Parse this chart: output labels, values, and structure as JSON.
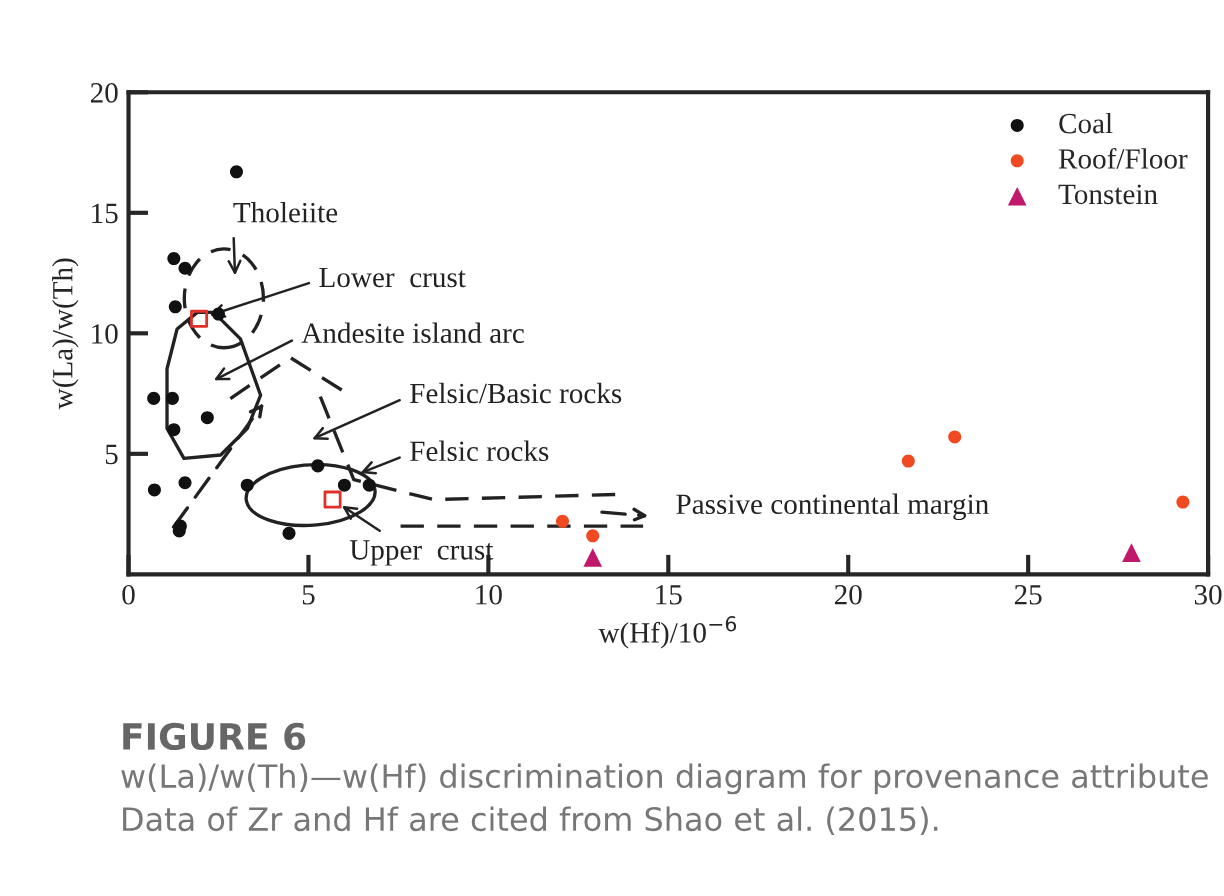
{
  "chart_data": {
    "type": "scatter",
    "xlabel": "w(Hf)/10$^{−6}$",
    "ylabel": "w(La)/w(Th)",
    "xlim": [
      0,
      30
    ],
    "ylim": [
      0,
      20
    ],
    "xticks": [
      0,
      5,
      10,
      15,
      20,
      25,
      30
    ],
    "yticks": [
      5,
      10,
      15,
      20
    ],
    "grid": false,
    "legend": "top right",
    "series": [
      {
        "name": "Coal",
        "color": "#111111",
        "marker": "circle",
        "x": [
          3.0,
          1.26,
          1.57,
          1.3,
          2.5,
          0.7,
          1.22,
          1.26,
          2.19,
          0.72,
          1.57,
          3.3,
          1.44,
          1.41,
          4.46,
          5.26,
          6.0,
          6.69
        ],
        "values": [
          16.7,
          13.1,
          12.7,
          11.1,
          10.8,
          7.3,
          7.3,
          6.0,
          6.5,
          3.5,
          3.8,
          3.7,
          2.0,
          1.8,
          1.7,
          4.5,
          3.7,
          3.7
        ]
      },
      {
        "name": "Roof/Floor",
        "color": "#f04a23",
        "marker": "circle",
        "x": [
          12.06,
          12.9,
          21.67,
          22.96,
          29.3
        ],
        "values": [
          2.2,
          1.6,
          4.7,
          5.7,
          3.0
        ]
      },
      {
        "name": "Tonstein",
        "color": "#c0186a",
        "marker": "triangle",
        "x": [
          12.9,
          27.87
        ],
        "values": [
          0.7,
          0.9
        ]
      },
      {
        "color": "#e0302a",
        "marker": "square",
        "x": [
          1.96,
          5.67
        ],
        "values": [
          10.6,
          3.1
        ]
      }
    ],
    "annotations": [
      "Tholeiite",
      {
        "text": "Lower  crust",
        "x": 1.96,
        "y": 10.6
      },
      "Andesite island arc",
      "Felsic/Basic rocks",
      "Felsic rocks",
      {
        "text": "Upper  crust",
        "x": 5.67,
        "y": 3.1
      },
      "Passive continental margin",
      "FIGURE 6",
      "w(La)/w(Th)—w(Hf) discrimination diagram for provenance attribute Data of Zr and Hf are cited from Shao et al. (2015)."
    ]
  }
}
